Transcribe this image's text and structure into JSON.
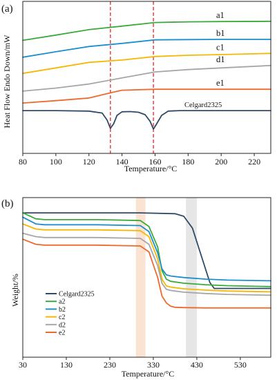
{
  "chart_data": [
    {
      "type": "line",
      "panel_label": "(a)",
      "xlabel": "Temperature/°C",
      "ylabel": "Heat Flow Endo Down/mW",
      "xlim": [
        80,
        230
      ],
      "x_ticks": [
        80,
        100,
        120,
        140,
        160,
        180,
        200,
        220
      ],
      "y_ticks_shown": false,
      "grid": false,
      "reference_lines_x": [
        133,
        159
      ],
      "reference_line_color": "#e8242b",
      "series": [
        {
          "name": "a1",
          "color": "#3aaa3a",
          "x": [
            80,
            100,
            120,
            140,
            160,
            180,
            200,
            230
          ],
          "y": [
            35.6,
            37.8,
            40.1,
            41.6,
            43.1,
            43.4,
            43.5,
            43.6
          ]
        },
        {
          "name": "b1",
          "color": "#1a8fd0",
          "x": [
            80,
            100,
            120,
            140,
            160,
            180,
            200,
            230
          ],
          "y": [
            28.5,
            30.8,
            33.0,
            34.3,
            35.8,
            35.9,
            36.0,
            36.0
          ]
        },
        {
          "name": "c1",
          "color": "#f5b800",
          "x": [
            80,
            100,
            120,
            140,
            160,
            180,
            200,
            230
          ],
          "y": [
            21.7,
            24.0,
            26.3,
            27.3,
            28.8,
            29.3,
            29.6,
            30.1
          ]
        },
        {
          "name": "d1",
          "color": "#a6a6a6",
          "x": [
            80,
            100,
            120,
            140,
            160,
            180,
            200,
            230
          ],
          "y": [
            14.2,
            15.5,
            17.2,
            19.8,
            22.3,
            23.3,
            24.0,
            25.0
          ]
        },
        {
          "name": "e1",
          "color": "#ef6a2a",
          "x": [
            80,
            100,
            120,
            135,
            140,
            160,
            180,
            200,
            230
          ],
          "y": [
            9.2,
            10.2,
            11.3,
            13.8,
            14.6,
            15.0,
            15.0,
            15.0,
            15.0
          ]
        },
        {
          "name": "Celgard2325",
          "color": "#2e4a66",
          "x": [
            80,
            100,
            120,
            128,
            131,
            133,
            135,
            137,
            140,
            145,
            150,
            154,
            157,
            159,
            161,
            164,
            168,
            175,
            200,
            230
          ],
          "y": [
            6.0,
            6.0,
            5.8,
            5.0,
            2.0,
            -1.5,
            0.5,
            4.0,
            5.5,
            5.6,
            5.3,
            4.3,
            1.5,
            -1.8,
            0.5,
            4.0,
            5.8,
            6.0,
            6.0,
            6.0
          ]
        }
      ]
    },
    {
      "type": "line",
      "panel_label": "(b)",
      "xlabel": "Temperature/°C",
      "ylabel": "Weight/%",
      "xlim": [
        30,
        600
      ],
      "x_ticks": [
        30,
        130,
        230,
        330,
        430,
        530
      ],
      "y_ticks_shown": false,
      "grid": false,
      "highlight_bands_x": [
        {
          "range": [
            290,
            312
          ],
          "color": "#fbe3d3"
        },
        {
          "range": [
            405,
            430
          ],
          "color": "#e6e6e6"
        }
      ],
      "legend_position": "lower-left",
      "series": [
        {
          "name": "Celgard2325",
          "color": "#2e4a66",
          "x": [
            30,
            100,
            200,
            300,
            380,
            400,
            420,
            440,
            460,
            470,
            480,
            520,
            600
          ],
          "y": [
            100,
            100,
            100,
            100,
            99.5,
            98.0,
            91.0,
            75.0,
            59.0,
            55.5,
            55.5,
            55.5,
            55.5
          ]
        },
        {
          "name": "a2",
          "color": "#3aaa3a",
          "x": [
            30,
            60,
            80,
            100,
            200,
            300,
            320,
            340,
            350,
            360,
            370,
            400,
            450,
            500,
            600
          ],
          "y": [
            100,
            96.5,
            96.0,
            96.0,
            96.0,
            95.5,
            92.0,
            80.0,
            66.0,
            61.0,
            59.7,
            58.6,
            57.7,
            57.1,
            56.6
          ]
        },
        {
          "name": "b2",
          "color": "#1a8fd0",
          "x": [
            30,
            60,
            80,
            100,
            200,
            300,
            320,
            340,
            350,
            360,
            370,
            400,
            450,
            500,
            600
          ],
          "y": [
            97.5,
            93.5,
            93.0,
            93.0,
            93.0,
            92.5,
            89.0,
            76.5,
            67.0,
            63.5,
            62.8,
            61.9,
            61.0,
            60.4,
            60.0
          ]
        },
        {
          "name": "c2",
          "color": "#f5b800",
          "x": [
            30,
            60,
            80,
            100,
            200,
            300,
            320,
            340,
            350,
            360,
            370,
            400,
            450,
            500,
            600
          ],
          "y": [
            93.5,
            90.5,
            90.0,
            90.0,
            90.0,
            89.5,
            86.0,
            73.0,
            61.0,
            57.0,
            56.3,
            55.3,
            54.5,
            54.0,
            53.5
          ]
        },
        {
          "name": "d2",
          "color": "#a6a6a6",
          "x": [
            30,
            60,
            80,
            100,
            200,
            300,
            320,
            340,
            350,
            360,
            370,
            400,
            450,
            500,
            600
          ],
          "y": [
            88.0,
            86.0,
            85.5,
            85.5,
            85.5,
            85.0,
            81.5,
            69.0,
            58.5,
            55.0,
            54.3,
            53.3,
            52.5,
            52.0,
            51.5
          ]
        },
        {
          "name": "e2",
          "color": "#ef6a2a",
          "x": [
            30,
            60,
            80,
            100,
            200,
            300,
            320,
            340,
            350,
            360,
            370,
            380,
            400,
            450,
            500,
            600
          ],
          "y": [
            84.5,
            81.5,
            81.0,
            81.0,
            81.0,
            80.5,
            77.0,
            62.0,
            51.0,
            47.0,
            45.0,
            44.4,
            44.2,
            44.0,
            44.0,
            44.0
          ]
        }
      ]
    }
  ]
}
